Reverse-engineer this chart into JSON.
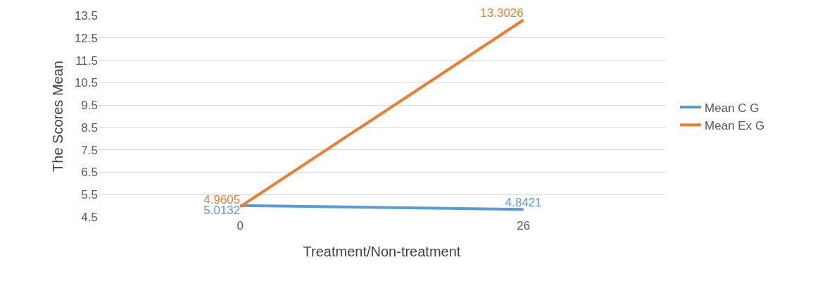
{
  "chart_data": {
    "type": "line",
    "xlabel": "Treatment/Non-treatment",
    "ylabel": "The Scores Mean",
    "categories": [
      "0",
      "26"
    ],
    "series": [
      {
        "name": "Mean C G",
        "color": "#5b9bd5",
        "values": [
          5.0132,
          4.8421
        ]
      },
      {
        "name": "Mean Ex G",
        "color": "#ed7d31",
        "values": [
          4.9605,
          13.3026
        ]
      }
    ],
    "ylim": [
      4.5,
      13.5
    ],
    "yticks": [
      4.5,
      5.5,
      6.5,
      7.5,
      8.5,
      9.5,
      10.5,
      11.5,
      12.5,
      13.5
    ],
    "grid": "y",
    "legend": "right",
    "data_labels": true,
    "marker": "none",
    "line_style": "solid"
  }
}
